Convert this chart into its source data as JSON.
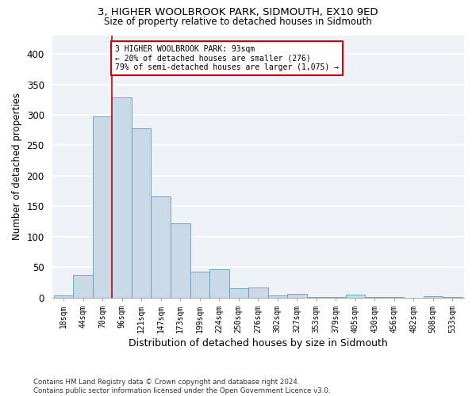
{
  "title": "3, HIGHER WOOLBROOK PARK, SIDMOUTH, EX10 9ED",
  "subtitle": "Size of property relative to detached houses in Sidmouth",
  "xlabel": "Distribution of detached houses by size in Sidmouth",
  "ylabel": "Number of detached properties",
  "bar_color": "#c9d9e8",
  "bar_edge_color": "#6699bb",
  "background_color": "#eef2f7",
  "grid_color": "#ffffff",
  "bins": [
    "18sqm",
    "44sqm",
    "70sqm",
    "96sqm",
    "121sqm",
    "147sqm",
    "173sqm",
    "199sqm",
    "224sqm",
    "250sqm",
    "276sqm",
    "302sqm",
    "327sqm",
    "353sqm",
    "379sqm",
    "405sqm",
    "430sqm",
    "456sqm",
    "482sqm",
    "508sqm",
    "533sqm"
  ],
  "values": [
    3,
    38,
    298,
    328,
    278,
    166,
    122,
    43,
    46,
    15,
    16,
    4,
    6,
    1,
    1,
    5,
    1,
    1,
    0,
    2,
    1
  ],
  "property_line_color": "#cc0000",
  "annotation_text": "3 HIGHER WOOLBROOK PARK: 93sqm\n← 20% of detached houses are smaller (276)\n79% of semi-detached houses are larger (1,075) →",
  "annotation_box_color": "#ffffff",
  "annotation_box_edge": "#cc0000",
  "footer_text": "Contains HM Land Registry data © Crown copyright and database right 2024.\nContains public sector information licensed under the Open Government Licence v3.0.",
  "ylim": [
    0,
    430
  ],
  "yticks": [
    0,
    50,
    100,
    150,
    200,
    250,
    300,
    350,
    400
  ]
}
